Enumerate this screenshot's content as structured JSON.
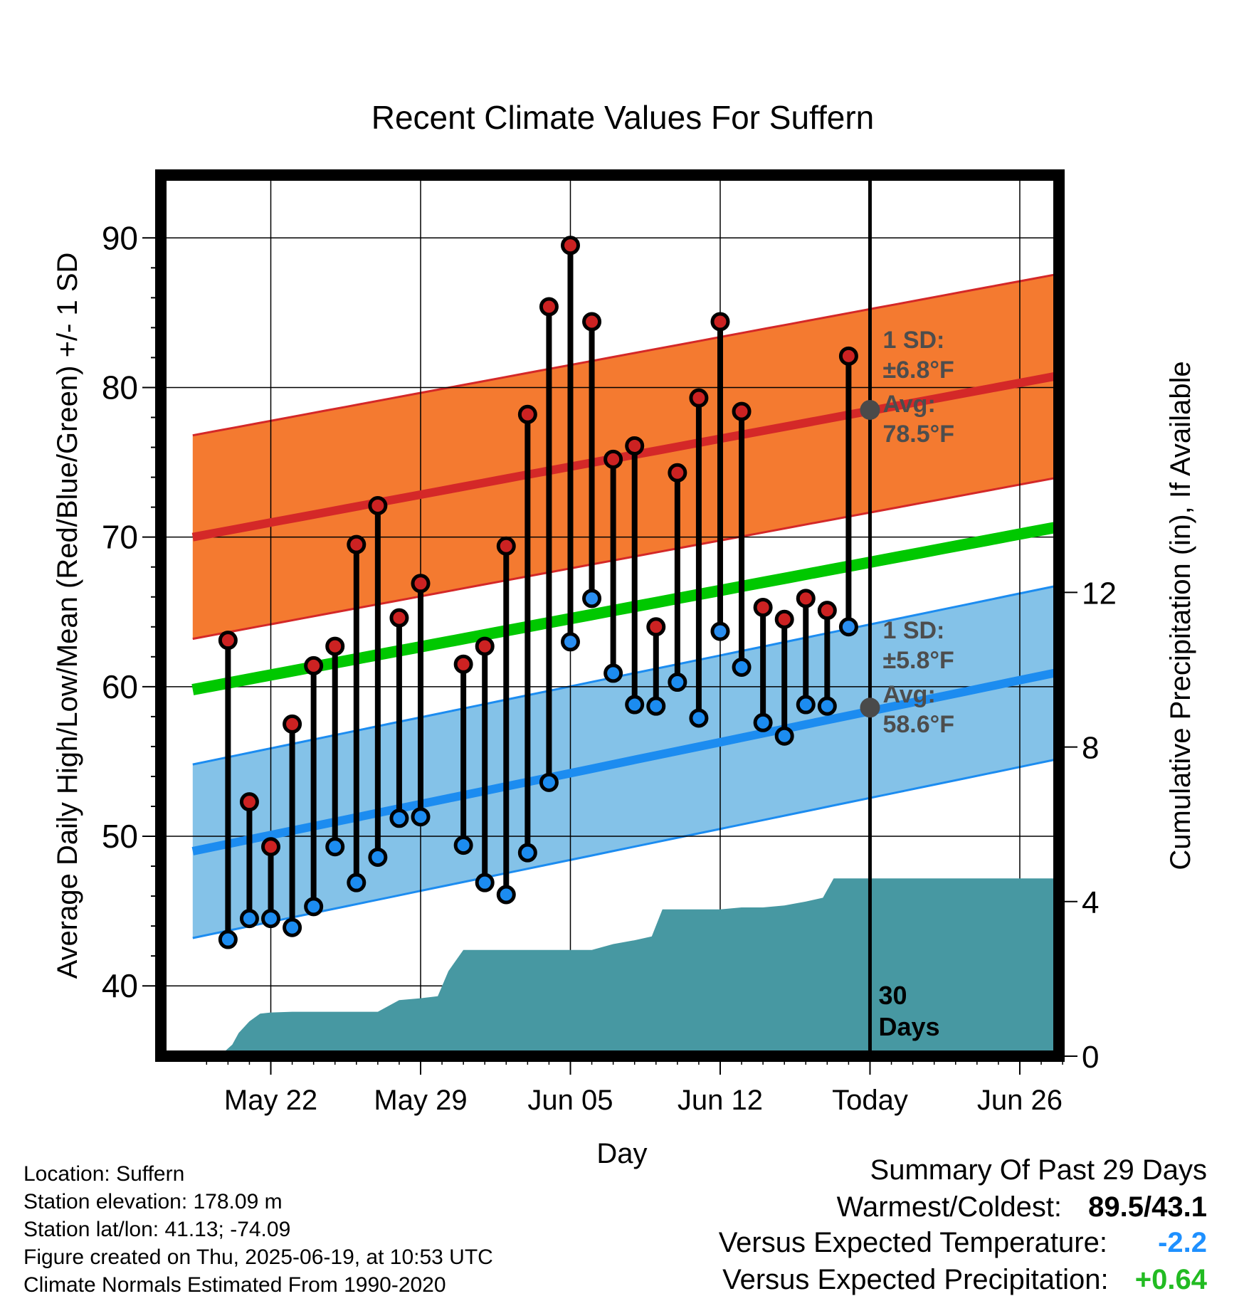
{
  "chart_data": {
    "type": "line",
    "title": "Recent Climate Values For Suffern",
    "xlabel": "Day",
    "ylabel": "Average Daily High/Low/Mean (Red/Blue/Green) +/- 1 SD",
    "y2label": "Cumulative Precipitation (in), If Available",
    "xlim": [
      -0.65,
      40.6
    ],
    "ylim": [
      35.3,
      94.2
    ],
    "y2lim": [
      0,
      22.8
    ],
    "grid": true,
    "x_ticks": [
      {
        "day": 3,
        "label": "May 22"
      },
      {
        "day": 10,
        "label": "May 29"
      },
      {
        "day": 17,
        "label": "Jun 05"
      },
      {
        "day": 24,
        "label": "Jun 12"
      },
      {
        "day": 31,
        "label": "Today"
      },
      {
        "day": 38,
        "label": "Jun 26"
      }
    ],
    "y_ticks": [
      40,
      50,
      60,
      70,
      80,
      90
    ],
    "y2_ticks": [
      0,
      4,
      8,
      12
    ],
    "today_day": 31,
    "today_label": "30\nDays",
    "normal_high": {
      "start": 70.0,
      "end": 81.0,
      "sd": 6.8,
      "today_avg": 78.5
    },
    "normal_low": {
      "start": 49.0,
      "end": 61.2,
      "sd": 5.8,
      "today_avg": 58.6
    },
    "normal_mean": {
      "start": 59.8,
      "end": 70.9
    },
    "high_band_label": [
      "1 SD:",
      "±6.8°F",
      "Avg:",
      "78.5°F"
    ],
    "low_band_label": [
      "1 SD:",
      "±5.8°F",
      "Avg:",
      "58.6°F"
    ],
    "days": [
      1,
      2,
      3,
      4,
      5,
      6,
      7,
      8,
      9,
      10,
      12,
      13,
      14,
      15,
      16,
      17,
      18,
      19,
      20,
      21,
      22,
      23,
      24,
      25,
      26,
      27,
      28,
      29,
      30
    ],
    "highs": [
      63.1,
      52.3,
      49.3,
      57.5,
      61.4,
      62.7,
      69.5,
      72.1,
      64.6,
      66.9,
      61.5,
      62.7,
      69.4,
      78.2,
      85.4,
      89.5,
      84.4,
      75.2,
      76.1,
      64.0,
      74.3,
      79.3,
      84.4,
      78.4,
      65.3,
      64.5,
      65.9,
      65.1,
      82.1
    ],
    "lows": [
      43.1,
      44.5,
      44.5,
      43.9,
      45.3,
      49.3,
      46.9,
      48.6,
      51.2,
      51.3,
      49.4,
      46.9,
      46.1,
      48.9,
      53.6,
      63.0,
      65.9,
      60.9,
      58.8,
      58.7,
      60.3,
      57.9,
      63.7,
      61.3,
      57.6,
      56.7,
      58.8,
      58.7,
      64.0
    ],
    "low_above_normal_days": [
      17,
      18,
      24,
      30
    ],
    "precip_x": [
      0.6,
      1.2,
      1.5,
      2.0,
      2.5,
      3.0,
      4.0,
      5.0,
      6.0,
      7.0,
      8.0,
      9.0,
      10.0,
      10.8,
      11.3,
      12.0,
      13.0,
      14.0,
      15.0,
      16.0,
      17.0,
      18.0,
      19.0,
      20.0,
      20.8,
      21.3,
      22.0,
      23.0,
      24.0,
      25.0,
      26.0,
      27.0,
      28.0,
      28.8,
      29.3,
      30.0,
      31.0,
      32.0,
      33.0,
      34.0,
      35.0,
      36.0,
      37.0,
      38.0,
      39.0,
      39.95
    ],
    "precip_y": [
      0,
      0.3,
      0.6,
      0.9,
      1.1,
      1.13,
      1.15,
      1.15,
      1.15,
      1.15,
      1.15,
      1.45,
      1.5,
      1.55,
      2.2,
      2.75,
      2.75,
      2.75,
      2.75,
      2.75,
      2.75,
      2.75,
      2.9,
      3.0,
      3.1,
      3.8,
      3.8,
      3.8,
      3.8,
      3.85,
      3.85,
      3.9,
      4.0,
      4.1,
      4.6,
      4.6,
      4.6,
      4.6,
      4.6,
      4.6,
      4.6,
      4.6,
      4.6,
      4.6,
      4.6,
      4.6
    ]
  },
  "colors": {
    "high_band": "#f47a30",
    "high_line": "#d42828",
    "low_band": "#84c2e8",
    "low_line": "#1c8cf0",
    "mean_line": "#00c800",
    "precip": "#4798a2",
    "high_dot": "#cc2222",
    "low_dot": "#2a8ef0",
    "band_text": "#4d4d4d",
    "blue_value": "#1e90ff",
    "green_value": "#22bb22"
  },
  "info": [
    "Location: Suffern",
    "Station elevation: 178.09 m",
    "Station lat/lon: 41.13; -74.09",
    "Figure created on Thu, 2025-06-19, at 10:53 UTC",
    "Climate Normals Estimated From 1990-2020"
  ],
  "summary": {
    "title": "Summary Of Past 29 Days",
    "warm_label": "Warmest/Coldest:",
    "warm_value": "89.5/43.1",
    "temp_label": "Versus Expected Temperature:",
    "temp_value": "-2.2",
    "precip_label": "Versus Expected Precipitation:",
    "precip_value": "+0.64"
  }
}
